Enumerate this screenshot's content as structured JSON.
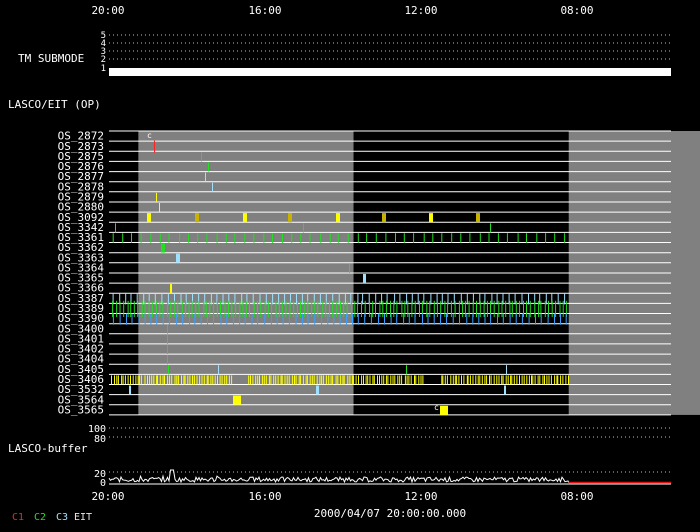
{
  "colors": {
    "background": "#000000",
    "text": "#ffffff",
    "band": "#808080",
    "c1": "#ff2020",
    "c2": "#20e020",
    "c3": "#a0e0ff",
    "eit": "#e8e8e8",
    "yellow": "#ffff00",
    "gold": "#c8b400",
    "blue": "#3aa0ff"
  },
  "chart_data": {
    "type": "timeline",
    "time_axis": {
      "top_ticks": [
        "20:00",
        "16:00",
        "12:00",
        "08:00"
      ],
      "bottom_ticks": [
        "20:00",
        "16:00",
        "12:00",
        "08:00"
      ],
      "date_label": "2000/04/07 20:00:00.000"
    },
    "tm_submode": {
      "label": "TM SUBMODE",
      "levels": [
        "5",
        "4",
        "3",
        "2",
        "1"
      ],
      "active_level": "1"
    },
    "lasco_eit_label": "LASCO/EIT (OP)",
    "os_rows": [
      "OS_2872",
      "OS_2873",
      "OS_2875",
      "OS_2876",
      "OS_2877",
      "OS_2878",
      "OS_2879",
      "OS_2880",
      "OS_3092",
      "OS_3342",
      "OS_3361",
      "OS_3362",
      "OS_3363",
      "OS_3364",
      "OS_3365",
      "OS_3366",
      "OS_3387",
      "OS_3389",
      "OS_3390",
      "OS_3400",
      "OS_3401",
      "OS_3402",
      "OS_3404",
      "OS_3405",
      "OS_3406",
      "OS_3532",
      "OS_3564",
      "OS_3565"
    ],
    "gray_bands_hours": [
      [
        0.75,
        6.25
      ],
      [
        11.75,
        16.25
      ]
    ],
    "plot_span_hours": 16.7,
    "data_end_hours": 11.75,
    "buffer": {
      "label": "LASCO-buffer",
      "ticks": [
        "100",
        "80",
        "20",
        "0"
      ]
    },
    "marker": "c",
    "legend": [
      {
        "key": "C1",
        "color": "#ff2020"
      },
      {
        "key": "C2",
        "color": "#20e020"
      },
      {
        "key": "C3",
        "color": "#a0e0ff"
      },
      {
        "key": "EIT",
        "color": "#e8e8e8"
      }
    ]
  }
}
